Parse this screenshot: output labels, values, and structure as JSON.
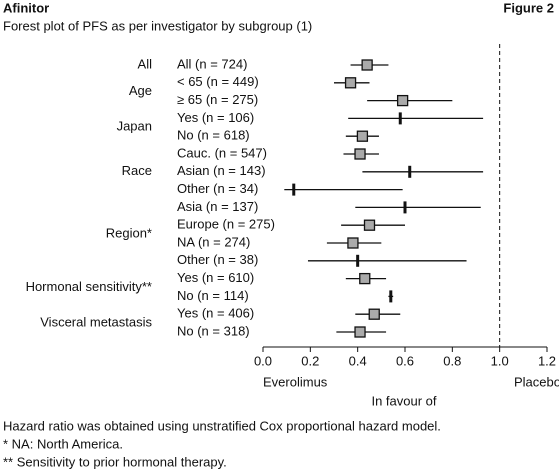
{
  "chart_data": {
    "type": "forest",
    "brand": "Afinitor",
    "figure": "Figure 2",
    "title": "Forest plot of PFS as per investigator by subgroup (1)",
    "groups": [
      {
        "name": "All",
        "subgroups": [
          {
            "label": "All (n = 724)",
            "estimate": 0.44,
            "lower": 0.37,
            "upper": 0.53,
            "marker": "square"
          }
        ]
      },
      {
        "name": "Age",
        "subgroups": [
          {
            "label": "< 65 (n = 449)",
            "estimate": 0.37,
            "lower": 0.3,
            "upper": 0.45,
            "marker": "square"
          },
          {
            "label": "≥ 65 (n = 275)",
            "estimate": 0.59,
            "lower": 0.44,
            "upper": 0.8,
            "marker": "square"
          }
        ]
      },
      {
        "name": "Japan",
        "subgroups": [
          {
            "label": "Yes (n = 106)",
            "estimate": 0.58,
            "lower": 0.36,
            "upper": 0.93,
            "marker": "tick"
          },
          {
            "label": "No (n = 618)",
            "estimate": 0.42,
            "lower": 0.35,
            "upper": 0.49,
            "marker": "square"
          }
        ]
      },
      {
        "name": "Race",
        "subgroups": [
          {
            "label": "Cauc. (n = 547)",
            "estimate": 0.41,
            "lower": 0.34,
            "upper": 0.49,
            "marker": "square"
          },
          {
            "label": "Asian (n = 143)",
            "estimate": 0.62,
            "lower": 0.42,
            "upper": 0.93,
            "marker": "tick"
          },
          {
            "label": "Other (n = 34)",
            "estimate": 0.13,
            "lower": 0.09,
            "upper": 0.59,
            "marker": "tick"
          }
        ]
      },
      {
        "name": "Region*",
        "subgroups": [
          {
            "label": "Asia (n = 137)",
            "estimate": 0.6,
            "lower": 0.39,
            "upper": 0.92,
            "marker": "tick"
          },
          {
            "label": "Europe (n = 275)",
            "estimate": 0.45,
            "lower": 0.33,
            "upper": 0.6,
            "marker": "square"
          },
          {
            "label": "NA (n = 274)",
            "estimate": 0.38,
            "lower": 0.27,
            "upper": 0.5,
            "marker": "square"
          },
          {
            "label": "Other (n = 38)",
            "estimate": 0.4,
            "lower": 0.19,
            "upper": 0.86,
            "marker": "tick"
          }
        ]
      },
      {
        "name": "Hormonal sensitivity**",
        "subgroups": [
          {
            "label": "Yes (n = 610)",
            "estimate": 0.43,
            "lower": 0.35,
            "upper": 0.52,
            "marker": "square"
          },
          {
            "label": "No (n = 114)",
            "estimate": 0.54,
            "lower": 0.53,
            "upper": 0.55,
            "marker": "tick"
          }
        ]
      },
      {
        "name": "Visceral metastasis",
        "subgroups": [
          {
            "label": "Yes (n = 406)",
            "estimate": 0.47,
            "lower": 0.39,
            "upper": 0.58,
            "marker": "square"
          },
          {
            "label": "No (n = 318)",
            "estimate": 0.41,
            "lower": 0.31,
            "upper": 0.52,
            "marker": "square"
          }
        ]
      }
    ],
    "xlim": [
      0,
      1.2
    ],
    "xticks": [
      {
        "value": 0,
        "label": "0.0"
      },
      0.2,
      0.4,
      0.6,
      0.8,
      {
        "value": 1,
        "label": "1.0"
      },
      1.2
    ],
    "reference_line": 1,
    "x_label_left": "Everolimus",
    "x_label_center": "In favour of",
    "x_label_right": "Placebo",
    "footnotes": [
      "Hazard ratio was obtained using unstratified Cox proportional hazard model.",
      "* NA: North America.",
      "** Sensitivity to prior hormonal therapy."
    ]
  }
}
